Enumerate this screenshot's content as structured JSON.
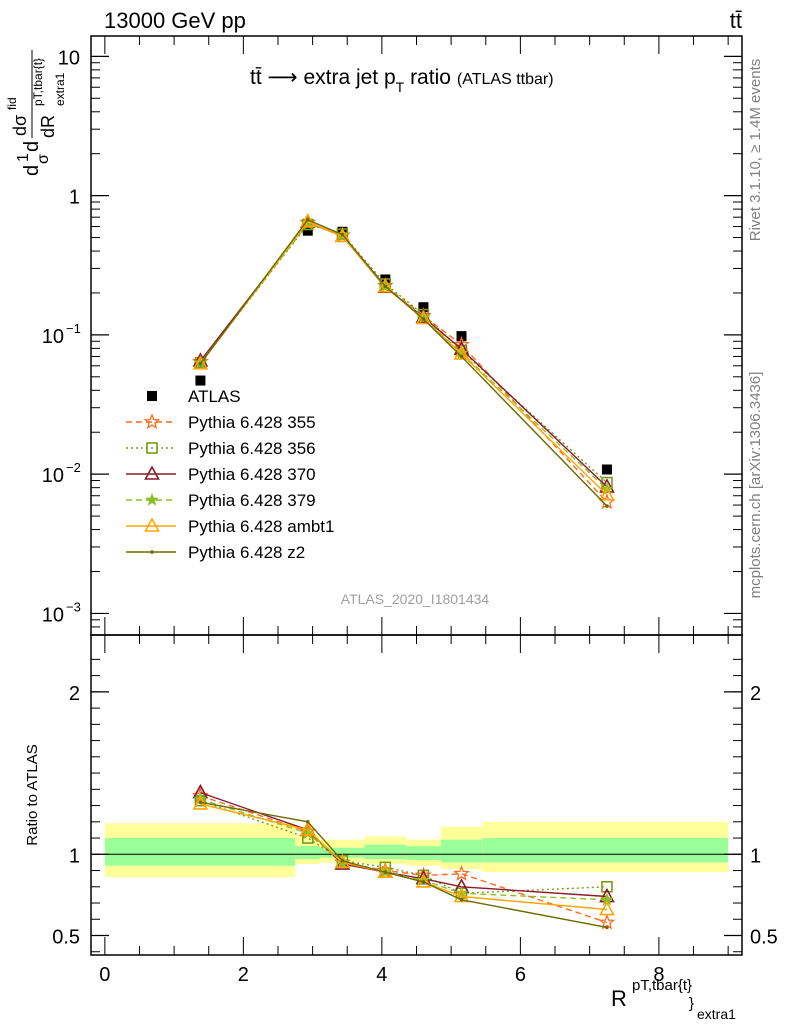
{
  "header": {
    "left": "13000 GeV pp",
    "right": "tt̄"
  },
  "title": {
    "main": "tt̄ ⟶ extra jet p",
    "sub": "T",
    "tail": " ratio",
    "small": "(ATLAS ttbar)"
  },
  "side_text": {
    "version": "Rivet 3.1.10, ≥ 1.4M events",
    "source": "mcplots.cern.ch [arXiv:1306.3436]"
  },
  "watermark": "ATLAS_2020_I1801434",
  "ylabel_main": {
    "num": "d",
    "num_sup": "1",
    "frac_top": "dσ",
    "frac_top_sup": "fid",
    "den": "dR",
    "den_sup": "pT,tbar{t}",
    "den_sub": "extra1",
    "prefix_sigma": "σ"
  },
  "ylabel_ratio": "Ratio to ATLAS",
  "xlabel": {
    "base": "R",
    "sup": "pT,tbar{t}",
    "sub_close": "}",
    "sub": "extra1"
  },
  "chart_data": [
    {
      "type": "scatter",
      "panel": "main",
      "yscale": "log",
      "xlim": [
        -0.2,
        9.2
      ],
      "ylim": [
        0.0007,
        14
      ],
      "x_ticks": [
        0,
        2,
        4,
        6,
        8
      ],
      "y_ticks": [
        {
          "value": 0.001,
          "label": "10",
          "exp": "−3"
        },
        {
          "value": 0.01,
          "label": "10",
          "exp": "−2"
        },
        {
          "value": 0.1,
          "label": "10",
          "exp": "−1"
        },
        {
          "value": 1,
          "label": "1",
          "exp": ""
        },
        {
          "value": 10,
          "label": "10",
          "exp": ""
        }
      ],
      "x": [
        1.38,
        2.93,
        3.43,
        4.05,
        4.6,
        5.15,
        7.25
      ],
      "series": [
        {
          "name": "ATLAS",
          "color": "#000000",
          "marker": "square-filled",
          "line": "none",
          "values": [
            0.047,
            0.56,
            0.55,
            0.25,
            0.158,
            0.098,
            0.0108
          ]
        },
        {
          "name": "Pythia 6.428 355",
          "color": "#ff6a1f",
          "marker": "star-open",
          "line": "dashed",
          "values": [
            0.064,
            0.64,
            0.52,
            0.225,
            0.137,
            0.085,
            0.0063
          ]
        },
        {
          "name": "Pythia 6.428 356",
          "color": "#7a9a1a",
          "marker": "square-open",
          "line": "dotted",
          "values": [
            0.063,
            0.62,
            0.53,
            0.232,
            0.14,
            0.077,
            0.0087
          ]
        },
        {
          "name": "Pythia 6.428 370",
          "color": "#8b1a2b",
          "marker": "triangle-open",
          "line": "solid",
          "values": [
            0.065,
            0.645,
            0.51,
            0.22,
            0.134,
            0.079,
            0.0081
          ]
        },
        {
          "name": "Pythia 6.428 379",
          "color": "#8cbf26",
          "marker": "star-filled",
          "line": "dashed",
          "values": [
            0.063,
            0.63,
            0.52,
            0.222,
            0.133,
            0.074,
            0.0078
          ]
        },
        {
          "name": "Pythia 6.428 ambt1",
          "color": "#ffa500",
          "marker": "triangle-open",
          "line": "solid",
          "values": [
            0.062,
            0.65,
            0.51,
            0.222,
            0.131,
            0.073,
            0.0071
          ]
        },
        {
          "name": "Pythia 6.428 z2",
          "color": "#6b6b00",
          "marker": "dot",
          "line": "solid",
          "values": [
            0.062,
            0.67,
            0.525,
            0.223,
            0.13,
            0.07,
            0.0059
          ]
        }
      ]
    },
    {
      "type": "line",
      "panel": "ratio",
      "xlim": [
        -0.2,
        9.2
      ],
      "ylim": [
        0.38,
        2.35
      ],
      "x_ticks": [
        0,
        2,
        4,
        6,
        8
      ],
      "y_ticks": [
        0.5,
        1,
        2
      ],
      "x": [
        1.38,
        2.93,
        3.43,
        4.05,
        4.6,
        5.15,
        7.25
      ],
      "bands": {
        "edges": [
          0,
          2.75,
          3.1,
          3.75,
          4.35,
          4.85,
          5.45,
          9.0
        ],
        "yellow": [
          [
            0.86,
            1.19
          ],
          [
            0.94,
            1.12
          ],
          [
            0.95,
            1.09
          ],
          [
            0.94,
            1.11
          ],
          [
            0.93,
            1.09
          ],
          [
            0.91,
            1.17
          ],
          [
            0.89,
            1.2
          ]
        ],
        "green": [
          [
            0.93,
            1.1
          ],
          [
            0.97,
            1.05
          ],
          [
            0.98,
            1.04
          ],
          [
            0.97,
            1.06
          ],
          [
            0.965,
            1.05
          ],
          [
            0.95,
            1.09
          ],
          [
            0.95,
            1.1
          ]
        ]
      },
      "series": [
        {
          "name": "Pythia 6.428 355",
          "color": "#ff6a1f",
          "marker": "star-open",
          "line": "dashed",
          "values": [
            1.36,
            1.14,
            0.95,
            0.9,
            0.87,
            0.88,
            0.58
          ]
        },
        {
          "name": "Pythia 6.428 356",
          "color": "#7a9a1a",
          "marker": "square-open",
          "line": "dotted",
          "values": [
            1.33,
            1.1,
            0.96,
            0.92,
            0.87,
            0.76,
            0.8
          ]
        },
        {
          "name": "Pythia 6.428 370",
          "color": "#8b1a2b",
          "marker": "triangle-open",
          "line": "solid",
          "values": [
            1.38,
            1.15,
            0.94,
            0.89,
            0.85,
            0.8,
            0.74
          ]
        },
        {
          "name": "Pythia 6.428 379",
          "color": "#8cbf26",
          "marker": "star-filled",
          "line": "dashed",
          "values": [
            1.34,
            1.13,
            0.95,
            0.89,
            0.84,
            0.76,
            0.72
          ]
        },
        {
          "name": "Pythia 6.428 ambt1",
          "color": "#ffa500",
          "marker": "triangle-open",
          "line": "solid",
          "values": [
            1.31,
            1.15,
            0.95,
            0.89,
            0.83,
            0.74,
            0.66
          ]
        },
        {
          "name": "Pythia 6.428 z2",
          "color": "#6b6b00",
          "marker": "dot",
          "line": "solid",
          "values": [
            1.32,
            1.2,
            0.96,
            0.89,
            0.83,
            0.72,
            0.55
          ]
        }
      ]
    }
  ]
}
